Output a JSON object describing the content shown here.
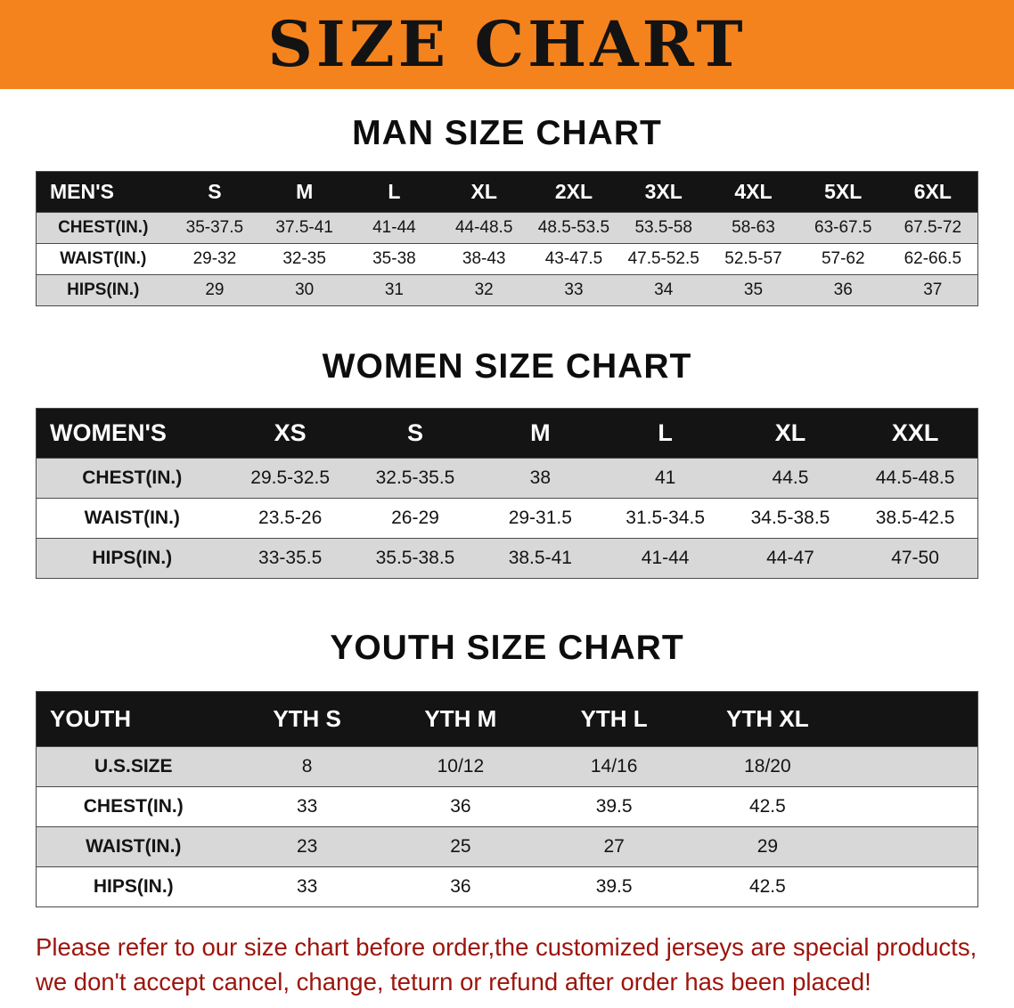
{
  "banner": {
    "title": "SIZE CHART"
  },
  "colors": {
    "banner_bg": "#F5831D",
    "table_header_bg": "#141414",
    "row_stripe": "#D8D8D8",
    "disclaimer_text": "#9C140C"
  },
  "sections": [
    {
      "id": "men",
      "heading": "MAN SIZE CHART",
      "table": {
        "header": [
          "MEN'S",
          "S",
          "M",
          "L",
          "XL",
          "2XL",
          "3XL",
          "4XL",
          "5XL",
          "6XL"
        ],
        "rows": [
          [
            "CHEST(IN.)",
            "35-37.5",
            "37.5-41",
            "41-44",
            "44-48.5",
            "48.5-53.5",
            "53.5-58",
            "58-63",
            "63-67.5",
            "67.5-72"
          ],
          [
            "WAIST(IN.)",
            "29-32",
            "32-35",
            "35-38",
            "38-43",
            "43-47.5",
            "47.5-52.5",
            "52.5-57",
            "57-62",
            "62-66.5"
          ],
          [
            "HIPS(IN.)",
            "29",
            "30",
            "31",
            "32",
            "33",
            "34",
            "35",
            "36",
            "37"
          ]
        ]
      }
    },
    {
      "id": "women",
      "heading": "WOMEN SIZE CHART",
      "table": {
        "header": [
          "WOMEN'S",
          "XS",
          "S",
          "M",
          "L",
          "XL",
          "XXL"
        ],
        "rows": [
          [
            "CHEST(IN.)",
            "29.5-32.5",
            "32.5-35.5",
            "38",
            "41",
            "44.5",
            "44.5-48.5"
          ],
          [
            "WAIST(IN.)",
            "23.5-26",
            "26-29",
            "29-31.5",
            "31.5-34.5",
            "34.5-38.5",
            "38.5-42.5"
          ],
          [
            "HIPS(IN.)",
            "33-35.5",
            "35.5-38.5",
            "38.5-41",
            "41-44",
            "44-47",
            "47-50"
          ]
        ]
      }
    },
    {
      "id": "youth",
      "heading": "YOUTH SIZE CHART",
      "table": {
        "header": [
          "YOUTH",
          "YTH S",
          "YTH M",
          "YTH L",
          "YTH XL"
        ],
        "rows": [
          [
            "U.S.SIZE",
            "8",
            "10/12",
            "14/16",
            "18/20"
          ],
          [
            "CHEST(IN.)",
            "33",
            "36",
            "39.5",
            "42.5"
          ],
          [
            "WAIST(IN.)",
            "23",
            "25",
            "27",
            "29"
          ],
          [
            "HIPS(IN.)",
            "33",
            "36",
            "39.5",
            "42.5"
          ]
        ]
      }
    }
  ],
  "disclaimer": {
    "line1": "Please refer to our size chart before order,the customized jerseys are special products,",
    "line2": "we don't accept cancel, change, teturn or refund after order has been placed!"
  }
}
